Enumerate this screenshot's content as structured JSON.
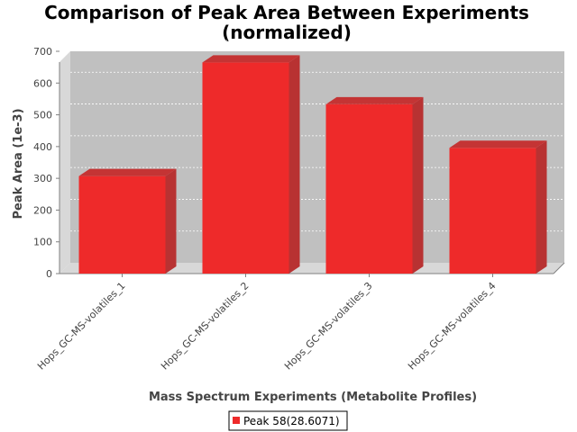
{
  "chart_data": {
    "type": "bar",
    "title": "Comparison of Peak Area Between Experiments",
    "subtitle": "(normalized)",
    "xlabel": "Mass Spectrum Experiments (Metabolite Profiles)",
    "ylabel": "Peak Area (1e-3)",
    "categories": [
      "Hops_GC-MS-volatiles_1",
      "Hops_GC-MS-volatiles_2",
      "Hops_GC-MS-volatiles_3",
      "Hops_GC-MS-volatiles_4"
    ],
    "series": [
      {
        "name": "Peak 58(28.6071)",
        "values": [
          307,
          665,
          533,
          396
        ],
        "color": "#ee2a2a"
      }
    ],
    "ylim": [
      0,
      700
    ],
    "yticks": [
      0,
      100,
      200,
      300,
      400,
      500,
      600,
      700
    ],
    "grid": true,
    "legend_position": "bottom",
    "plot_background": "#c0c0c0"
  }
}
